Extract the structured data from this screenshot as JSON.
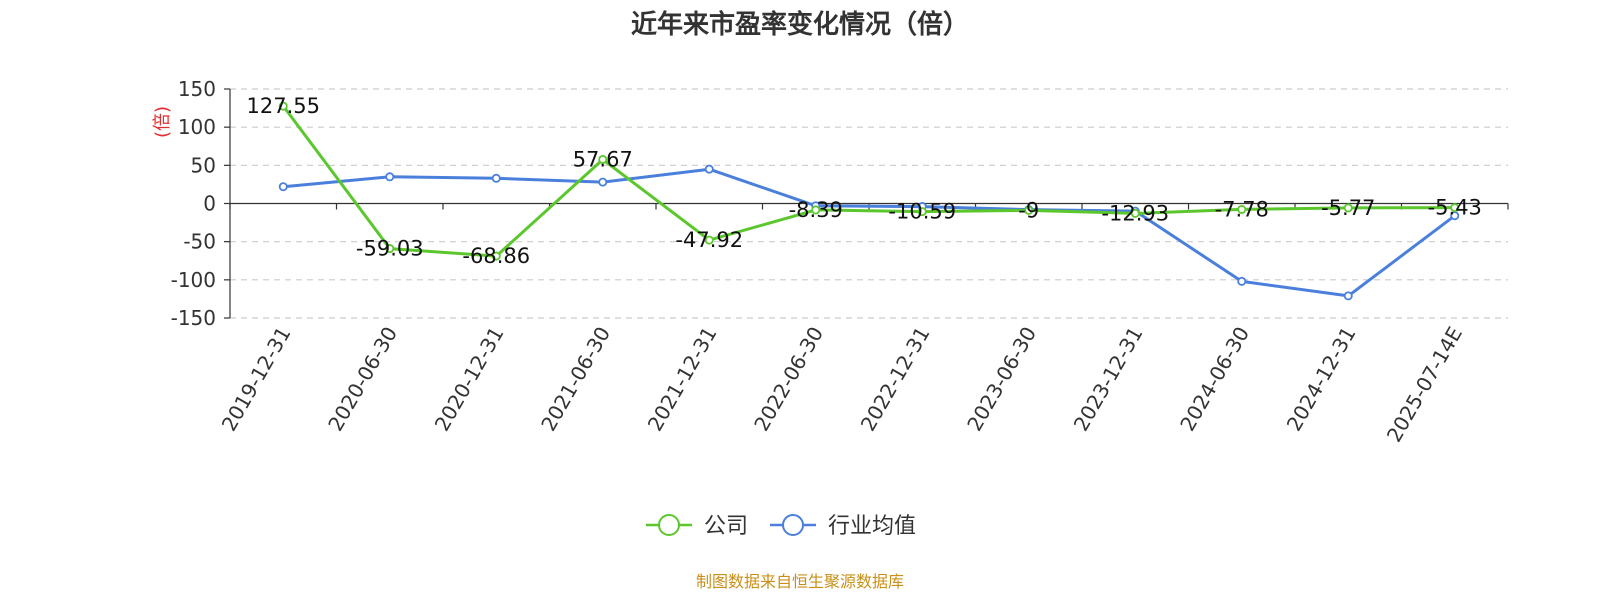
{
  "chart_data": {
    "type": "line",
    "title": "近年来市盈率变化情况（倍）",
    "ylabel": "(倍)",
    "ylim": [
      -150,
      150
    ],
    "yticks": [
      150,
      100,
      50,
      0,
      -50,
      -100,
      -150
    ],
    "x": [
      "2019-12-31",
      "2020-06-30",
      "2020-12-31",
      "2021-06-30",
      "2021-12-31",
      "2022-06-30",
      "2022-12-31",
      "2023-06-30",
      "2023-12-31",
      "2024-06-30",
      "2024-12-31",
      "2025-07-14E"
    ],
    "series": [
      {
        "name": "公司",
        "color": "#5cc72d",
        "values": [
          127.55,
          -59.03,
          -68.86,
          57.67,
          -47.92,
          -8.39,
          -10.59,
          -9,
          -12.93,
          -7.78,
          -5.77,
          -5.43
        ],
        "labels": [
          "127.55",
          "-59.03",
          "-68.86",
          "57.67",
          "-47.92",
          "-8.39",
          "-10.59",
          "-9",
          "-12.93",
          "-7.78",
          "-5.77",
          "-5.43"
        ]
      },
      {
        "name": "行业均值",
        "color": "#4a80dc",
        "values": [
          22,
          35,
          33,
          28,
          45,
          -3,
          -4,
          -8,
          -10,
          -102,
          -121,
          -16
        ]
      }
    ],
    "grid": true,
    "legend_position": "bottom-center",
    "source": "制图数据来自恒生聚源数据库",
    "colors": {
      "axis": "#333333",
      "grid": "#cccccc",
      "unit": "#e03030",
      "source": "#c8901a"
    }
  }
}
